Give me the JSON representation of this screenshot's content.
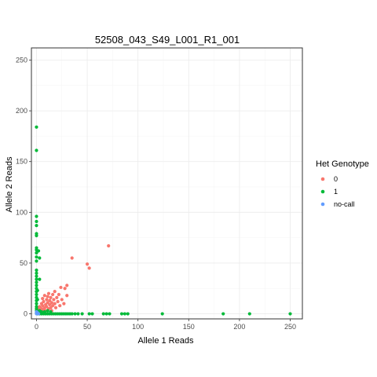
{
  "chart_data": {
    "type": "scatter",
    "title": "52508_043_S49_L001_R1_001",
    "xlabel": "Allele 1 Reads",
    "ylabel": "Allele 2 Reads",
    "xlim": [
      -5,
      262
    ],
    "ylim": [
      -5,
      262
    ],
    "x_ticks": [
      0,
      50,
      100,
      150,
      200,
      250
    ],
    "y_ticks": [
      0,
      50,
      100,
      150,
      200,
      250
    ],
    "grid": true,
    "legend": {
      "title": "Het Genotype",
      "position": "right",
      "entries": [
        {
          "label": "0",
          "color": "#F8766D"
        },
        {
          "label": "1",
          "color": "#00BA38"
        },
        {
          "label": "no-call",
          "color": "#619CFF"
        }
      ]
    },
    "series": [
      {
        "name": "0",
        "color": "#F8766D",
        "points": [
          [
            2,
            5
          ],
          [
            3,
            7
          ],
          [
            4,
            3
          ],
          [
            5,
            10
          ],
          [
            5,
            5
          ],
          [
            6,
            8
          ],
          [
            6,
            15
          ],
          [
            7,
            4
          ],
          [
            7,
            12
          ],
          [
            8,
            6
          ],
          [
            8,
            18
          ],
          [
            9,
            9
          ],
          [
            9,
            3
          ],
          [
            10,
            14
          ],
          [
            10,
            7
          ],
          [
            11,
            11
          ],
          [
            11,
            17
          ],
          [
            12,
            5
          ],
          [
            12,
            20
          ],
          [
            13,
            9
          ],
          [
            13,
            13
          ],
          [
            14,
            6
          ],
          [
            14,
            16
          ],
          [
            15,
            11
          ],
          [
            15,
            3
          ],
          [
            16,
            8
          ],
          [
            16,
            19
          ],
          [
            17,
            14
          ],
          [
            18,
            10
          ],
          [
            18,
            22
          ],
          [
            19,
            6
          ],
          [
            20,
            16
          ],
          [
            21,
            12
          ],
          [
            22,
            19
          ],
          [
            23,
            8
          ],
          [
            24,
            26
          ],
          [
            25,
            14
          ],
          [
            27,
            10
          ],
          [
            28,
            25
          ],
          [
            30,
            28
          ],
          [
            30,
            18
          ],
          [
            35,
            55
          ],
          [
            50,
            49
          ],
          [
            52,
            45
          ],
          [
            71,
            67
          ]
        ]
      },
      {
        "name": "1",
        "color": "#00BA38",
        "points": [
          [
            0,
            184
          ],
          [
            0,
            161
          ],
          [
            0,
            96
          ],
          [
            0,
            91
          ],
          [
            0,
            87
          ],
          [
            0,
            79
          ],
          [
            0,
            77
          ],
          [
            0,
            65
          ],
          [
            0,
            63
          ],
          [
            0,
            60
          ],
          [
            0,
            56
          ],
          [
            0,
            52
          ],
          [
            0,
            43
          ],
          [
            0,
            40
          ],
          [
            0,
            37
          ],
          [
            0,
            34
          ],
          [
            0,
            31
          ],
          [
            0,
            28
          ],
          [
            0,
            25
          ],
          [
            0,
            22
          ],
          [
            0,
            19
          ],
          [
            0,
            16
          ],
          [
            0,
            13
          ],
          [
            0,
            10
          ],
          [
            0,
            7
          ],
          [
            0,
            5
          ],
          [
            0,
            3
          ],
          [
            0,
            1
          ],
          [
            1,
            23
          ],
          [
            1,
            14
          ],
          [
            2,
            62
          ],
          [
            3,
            55
          ],
          [
            3,
            34
          ],
          [
            1,
            0
          ],
          [
            3,
            0
          ],
          [
            5,
            0
          ],
          [
            7,
            0
          ],
          [
            9,
            0
          ],
          [
            11,
            0
          ],
          [
            13,
            0
          ],
          [
            15,
            0
          ],
          [
            17,
            0
          ],
          [
            19,
            0
          ],
          [
            21,
            0
          ],
          [
            23,
            0
          ],
          [
            25,
            0
          ],
          [
            27,
            0
          ],
          [
            29,
            0
          ],
          [
            31,
            0
          ],
          [
            33,
            0
          ],
          [
            35,
            0
          ],
          [
            38,
            0
          ],
          [
            41,
            0
          ],
          [
            45,
            0
          ],
          [
            52,
            0
          ],
          [
            55,
            0
          ],
          [
            66,
            0
          ],
          [
            69,
            0
          ],
          [
            72,
            0
          ],
          [
            84,
            0
          ],
          [
            87,
            0
          ],
          [
            90,
            0
          ],
          [
            124,
            0
          ],
          [
            184,
            0
          ],
          [
            210,
            0
          ],
          [
            250,
            0
          ],
          [
            3,
            3
          ],
          [
            5,
            2
          ],
          [
            8,
            2
          ],
          [
            11,
            3
          ],
          [
            14,
            2
          ]
        ]
      },
      {
        "name": "no-call",
        "color": "#619CFF",
        "points": [
          [
            0,
            0
          ],
          [
            1,
            1
          ],
          [
            2,
            0
          ],
          [
            0,
            2
          ]
        ]
      }
    ]
  }
}
